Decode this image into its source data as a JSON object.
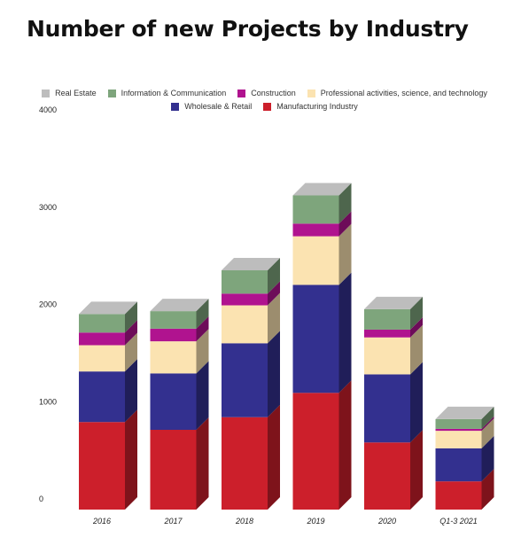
{
  "chart_data": {
    "type": "bar",
    "stacked": true,
    "style": "3d",
    "title": "Number of new Projects by Industry",
    "categories": [
      "2016",
      "2017",
      "2018",
      "2019",
      "2020",
      "Q1-3 2021"
    ],
    "ylim": [
      0,
      4000
    ],
    "yticks": [
      "0",
      "1000",
      "2000",
      "3000",
      "4000"
    ],
    "grid": false,
    "legend_position": "top-center",
    "series": [
      {
        "name": "Manufacturing Industry",
        "color": "#cc1f2b",
        "values": [
          900,
          820,
          950,
          1200,
          690,
          290
        ]
      },
      {
        "name": "Wholesale & Retail",
        "color": "#33308f",
        "values": [
          520,
          580,
          760,
          1110,
          700,
          340
        ]
      },
      {
        "name": "Professional activities, science, and technology",
        "color": "#fbe3b1",
        "values": [
          270,
          330,
          390,
          500,
          380,
          180
        ]
      },
      {
        "name": "Construction",
        "color": "#b0138f",
        "values": [
          130,
          130,
          120,
          130,
          80,
          20
        ]
      },
      {
        "name": "Information & Communication",
        "color": "#7ea57c",
        "values": [
          190,
          180,
          240,
          290,
          210,
          100
        ]
      },
      {
        "name": "Real Estate",
        "color": "#bdbdbd",
        "values": [
          0,
          0,
          0,
          0,
          0,
          0
        ]
      }
    ],
    "legend_order": [
      "Real Estate",
      "Information & Communication",
      "Construction",
      "Professional activities, science, and technology",
      "Wholesale & Retail",
      "Manufacturing Industry"
    ]
  }
}
